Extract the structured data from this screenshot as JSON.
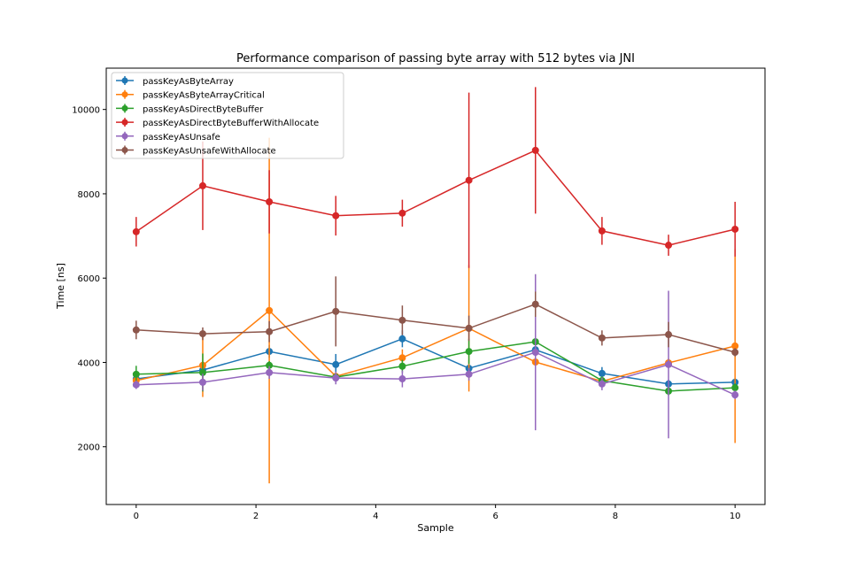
{
  "chart_data": {
    "type": "line",
    "title": "Performance comparison of passing byte array with 512 bytes via JNI",
    "xlabel": "Sample",
    "ylabel": "Time [ns]",
    "xlim": [
      -0.5,
      10.5
    ],
    "ylim": [
      630,
      10980
    ],
    "xticks": [
      0,
      2,
      4,
      6,
      8,
      10
    ],
    "yticks": [
      2000,
      4000,
      6000,
      8000,
      10000
    ],
    "grid": false,
    "legend_position": "top-left",
    "error_bars": true,
    "x": [
      0,
      1.111,
      2.222,
      3.333,
      4.444,
      5.556,
      6.667,
      7.778,
      8.889,
      10
    ],
    "series": [
      {
        "name": "passKeyAsByteArray",
        "color": "#1f77b4",
        "values": [
          3610,
          3820,
          4260,
          3950,
          4560,
          3860,
          4300,
          3740,
          3490,
          3530
        ],
        "errors": [
          150,
          200,
          150,
          250,
          200,
          200,
          300,
          150,
          100,
          100
        ]
      },
      {
        "name": "passKeyAsByteArrayCritical",
        "color": "#ff7f0e",
        "values": [
          3570,
          3930,
          5230,
          3670,
          4110,
          4810,
          4010,
          3550,
          3990,
          4390
        ],
        "errors": [
          100,
          750,
          4100,
          100,
          200,
          1500,
          150,
          100,
          100,
          2300
        ]
      },
      {
        "name": "passKeyAsDirectByteBuffer",
        "color": "#2ca02c",
        "values": [
          3720,
          3760,
          3930,
          3650,
          3910,
          4260,
          4490,
          3570,
          3320,
          3400
        ],
        "errors": [
          200,
          450,
          100,
          100,
          150,
          300,
          1600,
          100,
          100,
          100
        ]
      },
      {
        "name": "passKeyAsDirectByteBufferWithAllocate",
        "color": "#d62728",
        "values": [
          7100,
          8190,
          7810,
          7480,
          7540,
          8320,
          9030,
          7120,
          6780,
          7160
        ],
        "errors": [
          350,
          1050,
          750,
          470,
          320,
          2080,
          1500,
          330,
          250,
          650
        ]
      },
      {
        "name": "passKeyAsUnsafe",
        "color": "#9467bd",
        "values": [
          3470,
          3530,
          3760,
          3630,
          3610,
          3720,
          4240,
          3490,
          3950,
          3230
        ],
        "errors": [
          100,
          200,
          150,
          150,
          200,
          150,
          1850,
          150,
          1750,
          100
        ]
      },
      {
        "name": "passKeyAsUnsafeWithAllocate",
        "color": "#8c564b",
        "values": [
          4770,
          4680,
          4730,
          5210,
          5000,
          4810,
          5380,
          4580,
          4660,
          4240
        ],
        "errors": [
          220,
          150,
          250,
          830,
          350,
          300,
          300,
          180,
          300,
          100
        ]
      }
    ]
  }
}
